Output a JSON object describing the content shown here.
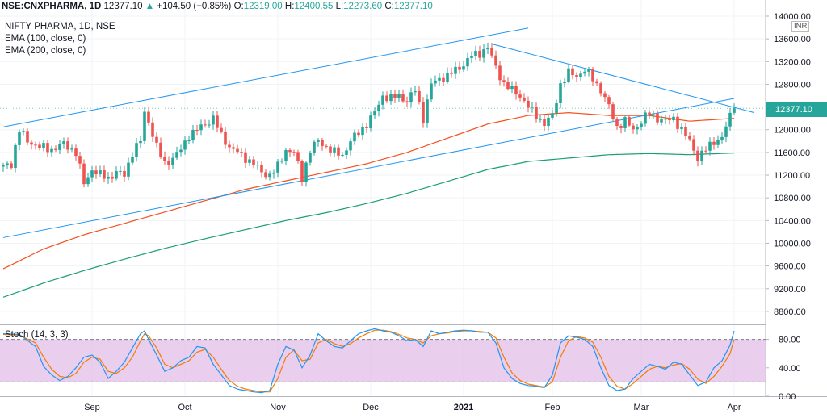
{
  "header": {
    "symbol": "NSE:CNXPHARMA, 1D",
    "last": "12377.10",
    "change_arrow": "▲",
    "change": "+104.50 (+0.85%)",
    "o_label": "O:",
    "o": "12319.00",
    "h_label": "H:",
    "h": "12400.55",
    "l_label": "L:",
    "l": "12273.60",
    "c_label": "C:",
    "c": "12377.10"
  },
  "legend": {
    "title": "NIFTY PHARMA, 1D, NSE",
    "ema100": "EMA (100, close, 0)",
    "ema200": "EMA (200, close, 0)",
    "stoch": "Stoch (14, 3, 3)"
  },
  "price_tag": "12377.10",
  "unit": "INR",
  "colors": {
    "up": "#26a69a",
    "down": "#ef5350",
    "ema100": "#f4511e",
    "ema200": "#1b9e77",
    "trendline": "#2196f3",
    "stoch_k": "#2196f3",
    "stoch_d": "#f57c00",
    "stoch_band": "#e1bee7"
  },
  "chart_data": [
    {
      "type": "candlestick",
      "title": "NIFTY PHARMA, 1D, NSE",
      "x_ticks": [
        "Sep",
        "Oct",
        "Nov",
        "Dec",
        "2021",
        "Feb",
        "Mar",
        "Apr"
      ],
      "x_tick_days": [
        22,
        45,
        68,
        91,
        114,
        136,
        158,
        181
      ],
      "ylim": [
        8600,
        14000
      ],
      "y_ticks": [
        8800,
        9200,
        9600,
        10000,
        10400,
        10800,
        11200,
        11600,
        12000,
        12400,
        12800,
        13200,
        13600,
        14000
      ],
      "y_tick_labels": [
        "8800.00",
        "9200.00",
        "9600.00",
        "10000.00",
        "10400.00",
        "10800.00",
        "11200.00",
        "11600.00",
        "12000.00",
        "12400.00",
        "12800.00",
        "13200.00",
        "13600.00",
        "14000.00"
      ],
      "close_anchors": [
        [
          0,
          11350
        ],
        [
          2,
          11400
        ],
        [
          4,
          12000
        ],
        [
          6,
          11800
        ],
        [
          9,
          11700
        ],
        [
          12,
          11650
        ],
        [
          15,
          11750
        ],
        [
          18,
          11600
        ],
        [
          20,
          11050
        ],
        [
          22,
          11300
        ],
        [
          24,
          11200
        ],
        [
          26,
          11150
        ],
        [
          28,
          11250
        ],
        [
          30,
          11200
        ],
        [
          32,
          11600
        ],
        [
          34,
          11800
        ],
        [
          35,
          12300
        ],
        [
          36,
          12150
        ],
        [
          38,
          11700
        ],
        [
          40,
          11400
        ],
        [
          42,
          11500
        ],
        [
          44,
          11650
        ],
        [
          46,
          11900
        ],
        [
          48,
          12000
        ],
        [
          50,
          12100
        ],
        [
          52,
          12200
        ],
        [
          54,
          11900
        ],
        [
          56,
          11700
        ],
        [
          58,
          11600
        ],
        [
          60,
          11500
        ],
        [
          62,
          11400
        ],
        [
          64,
          11250
        ],
        [
          66,
          11200
        ],
        [
          68,
          11350
        ],
        [
          70,
          11650
        ],
        [
          72,
          11600
        ],
        [
          74,
          11150
        ],
        [
          76,
          11650
        ],
        [
          78,
          11800
        ],
        [
          80,
          11700
        ],
        [
          82,
          11600
        ],
        [
          84,
          11550
        ],
        [
          86,
          11800
        ],
        [
          88,
          11950
        ],
        [
          90,
          12100
        ],
        [
          92,
          12300
        ],
        [
          94,
          12600
        ],
        [
          96,
          12550
        ],
        [
          98,
          12600
        ],
        [
          100,
          12500
        ],
        [
          102,
          12700
        ],
        [
          104,
          12200
        ],
        [
          106,
          12800
        ],
        [
          108,
          12900
        ],
        [
          110,
          12950
        ],
        [
          112,
          13050
        ],
        [
          114,
          13150
        ],
        [
          116,
          13300
        ],
        [
          118,
          13350
        ],
        [
          120,
          13450
        ],
        [
          122,
          13100
        ],
        [
          124,
          12800
        ],
        [
          126,
          12700
        ],
        [
          128,
          12600
        ],
        [
          130,
          12400
        ],
        [
          132,
          12250
        ],
        [
          134,
          12100
        ],
        [
          136,
          12250
        ],
        [
          138,
          12800
        ],
        [
          140,
          13000
        ],
        [
          142,
          12950
        ],
        [
          144,
          13050
        ],
        [
          146,
          12900
        ],
        [
          148,
          12700
        ],
        [
          150,
          12400
        ],
        [
          152,
          12050
        ],
        [
          154,
          12150
        ],
        [
          156,
          12000
        ],
        [
          158,
          12150
        ],
        [
          160,
          12300
        ],
        [
          162,
          12200
        ],
        [
          164,
          12150
        ],
        [
          166,
          12200
        ],
        [
          168,
          12000
        ],
        [
          170,
          11800
        ],
        [
          172,
          11500
        ],
        [
          174,
          11650
        ],
        [
          176,
          11800
        ],
        [
          178,
          11850
        ],
        [
          180,
          12250
        ],
        [
          181,
          12377.1
        ]
      ],
      "ema100_anchors": [
        [
          0,
          9550
        ],
        [
          10,
          9900
        ],
        [
          20,
          10150
        ],
        [
          30,
          10350
        ],
        [
          40,
          10550
        ],
        [
          50,
          10750
        ],
        [
          60,
          10950
        ],
        [
          70,
          11100
        ],
        [
          80,
          11250
        ],
        [
          90,
          11400
        ],
        [
          100,
          11600
        ],
        [
          110,
          11850
        ],
        [
          120,
          12100
        ],
        [
          130,
          12250
        ],
        [
          140,
          12300
        ],
        [
          150,
          12250
        ],
        [
          160,
          12250
        ],
        [
          170,
          12150
        ],
        [
          181,
          12200
        ]
      ],
      "ema200_anchors": [
        [
          0,
          9050
        ],
        [
          10,
          9300
        ],
        [
          20,
          9520
        ],
        [
          30,
          9720
        ],
        [
          40,
          9910
        ],
        [
          50,
          10080
        ],
        [
          60,
          10240
        ],
        [
          70,
          10400
        ],
        [
          80,
          10540
        ],
        [
          90,
          10700
        ],
        [
          100,
          10880
        ],
        [
          110,
          11090
        ],
        [
          120,
          11300
        ],
        [
          130,
          11440
        ],
        [
          140,
          11500
        ],
        [
          150,
          11560
        ],
        [
          160,
          11580
        ],
        [
          170,
          11560
        ],
        [
          181,
          11590
        ]
      ],
      "trendlines": [
        {
          "from": [
            0,
            12050
          ],
          "to": [
            130,
            13790
          ]
        },
        {
          "from": [
            0,
            10100
          ],
          "to": [
            181,
            12550
          ]
        },
        {
          "from": [
            121,
            13510
          ],
          "to": [
            186,
            12300
          ]
        }
      ],
      "last_close": 12377.1
    },
    {
      "type": "line",
      "title": "Stoch (14, 3, 3)",
      "ylim": [
        0,
        100
      ],
      "y_ticks": [
        0,
        40,
        80
      ],
      "y_tick_labels": [
        "0.00",
        "40.00",
        "80.00"
      ],
      "band": [
        20,
        80
      ],
      "k_anchors": [
        [
          0,
          88
        ],
        [
          4,
          87
        ],
        [
          8,
          70
        ],
        [
          10,
          42
        ],
        [
          12,
          30
        ],
        [
          14,
          22
        ],
        [
          16,
          28
        ],
        [
          18,
          40
        ],
        [
          20,
          55
        ],
        [
          22,
          58
        ],
        [
          24,
          48
        ],
        [
          26,
          25
        ],
        [
          28,
          35
        ],
        [
          30,
          48
        ],
        [
          32,
          68
        ],
        [
          34,
          88
        ],
        [
          35,
          92
        ],
        [
          36,
          80
        ],
        [
          38,
          58
        ],
        [
          40,
          35
        ],
        [
          42,
          40
        ],
        [
          44,
          50
        ],
        [
          46,
          55
        ],
        [
          48,
          70
        ],
        [
          50,
          68
        ],
        [
          52,
          45
        ],
        [
          54,
          30
        ],
        [
          56,
          15
        ],
        [
          58,
          10
        ],
        [
          60,
          8
        ],
        [
          62,
          6
        ],
        [
          64,
          5
        ],
        [
          66,
          8
        ],
        [
          68,
          45
        ],
        [
          70,
          70
        ],
        [
          72,
          65
        ],
        [
          74,
          40
        ],
        [
          76,
          58
        ],
        [
          78,
          88
        ],
        [
          80,
          78
        ],
        [
          82,
          70
        ],
        [
          84,
          68
        ],
        [
          86,
          78
        ],
        [
          88,
          88
        ],
        [
          90,
          92
        ],
        [
          92,
          95
        ],
        [
          94,
          92
        ],
        [
          96,
          90
        ],
        [
          98,
          85
        ],
        [
          100,
          78
        ],
        [
          102,
          80
        ],
        [
          104,
          70
        ],
        [
          106,
          92
        ],
        [
          108,
          88
        ],
        [
          110,
          90
        ],
        [
          112,
          92
        ],
        [
          114,
          93
        ],
        [
          116,
          92
        ],
        [
          118,
          90
        ],
        [
          120,
          90
        ],
        [
          122,
          75
        ],
        [
          124,
          40
        ],
        [
          126,
          25
        ],
        [
          128,
          18
        ],
        [
          130,
          15
        ],
        [
          132,
          14
        ],
        [
          134,
          12
        ],
        [
          136,
          30
        ],
        [
          138,
          75
        ],
        [
          140,
          85
        ],
        [
          142,
          83
        ],
        [
          144,
          80
        ],
        [
          146,
          70
        ],
        [
          148,
          40
        ],
        [
          150,
          15
        ],
        [
          152,
          8
        ],
        [
          154,
          10
        ],
        [
          156,
          25
        ],
        [
          158,
          35
        ],
        [
          160,
          45
        ],
        [
          162,
          42
        ],
        [
          164,
          38
        ],
        [
          166,
          48
        ],
        [
          168,
          45
        ],
        [
          170,
          30
        ],
        [
          172,
          15
        ],
        [
          174,
          20
        ],
        [
          176,
          40
        ],
        [
          178,
          50
        ],
        [
          180,
          72
        ],
        [
          181,
          92
        ]
      ],
      "d_anchors": [
        [
          0,
          87
        ],
        [
          4,
          86
        ],
        [
          8,
          75
        ],
        [
          10,
          55
        ],
        [
          12,
          38
        ],
        [
          14,
          28
        ],
        [
          16,
          26
        ],
        [
          18,
          32
        ],
        [
          20,
          48
        ],
        [
          22,
          55
        ],
        [
          24,
          52
        ],
        [
          26,
          35
        ],
        [
          28,
          32
        ],
        [
          30,
          40
        ],
        [
          32,
          55
        ],
        [
          34,
          78
        ],
        [
          35,
          88
        ],
        [
          36,
          85
        ],
        [
          38,
          68
        ],
        [
          40,
          45
        ],
        [
          42,
          40
        ],
        [
          44,
          45
        ],
        [
          46,
          50
        ],
        [
          48,
          62
        ],
        [
          50,
          66
        ],
        [
          52,
          55
        ],
        [
          54,
          38
        ],
        [
          56,
          22
        ],
        [
          58,
          14
        ],
        [
          60,
          10
        ],
        [
          62,
          8
        ],
        [
          64,
          6
        ],
        [
          66,
          6
        ],
        [
          68,
          25
        ],
        [
          70,
          55
        ],
        [
          72,
          65
        ],
        [
          74,
          50
        ],
        [
          76,
          52
        ],
        [
          78,
          75
        ],
        [
          80,
          80
        ],
        [
          82,
          74
        ],
        [
          84,
          70
        ],
        [
          86,
          74
        ],
        [
          88,
          82
        ],
        [
          90,
          88
        ],
        [
          92,
          93
        ],
        [
          94,
          93
        ],
        [
          96,
          91
        ],
        [
          98,
          87
        ],
        [
          100,
          82
        ],
        [
          102,
          80
        ],
        [
          104,
          75
        ],
        [
          106,
          85
        ],
        [
          108,
          88
        ],
        [
          110,
          89
        ],
        [
          112,
          91
        ],
        [
          114,
          92
        ],
        [
          116,
          92
        ],
        [
          118,
          91
        ],
        [
          120,
          90
        ],
        [
          122,
          82
        ],
        [
          124,
          55
        ],
        [
          126,
          33
        ],
        [
          128,
          22
        ],
        [
          130,
          17
        ],
        [
          132,
          15
        ],
        [
          134,
          13
        ],
        [
          136,
          20
        ],
        [
          138,
          55
        ],
        [
          140,
          78
        ],
        [
          142,
          84
        ],
        [
          144,
          82
        ],
        [
          146,
          76
        ],
        [
          148,
          55
        ],
        [
          150,
          28
        ],
        [
          152,
          14
        ],
        [
          154,
          10
        ],
        [
          156,
          18
        ],
        [
          158,
          28
        ],
        [
          160,
          38
        ],
        [
          162,
          42
        ],
        [
          164,
          40
        ],
        [
          166,
          44
        ],
        [
          168,
          46
        ],
        [
          170,
          38
        ],
        [
          172,
          24
        ],
        [
          174,
          18
        ],
        [
          176,
          28
        ],
        [
          178,
          42
        ],
        [
          180,
          60
        ],
        [
          181,
          80
        ]
      ]
    }
  ]
}
